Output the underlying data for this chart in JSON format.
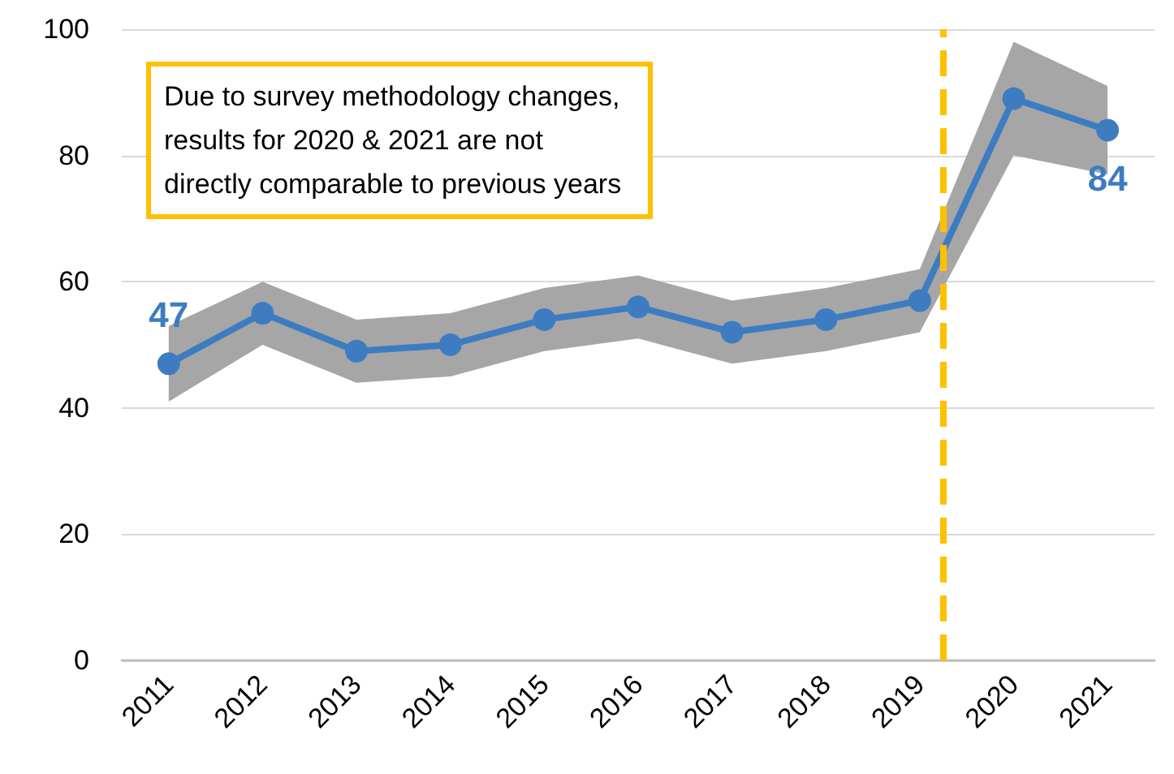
{
  "chart_data": {
    "type": "line",
    "x": [
      2011,
      2012,
      2013,
      2014,
      2015,
      2016,
      2017,
      2018,
      2019,
      2020,
      2021
    ],
    "xlim": [
      2010.5,
      2021.5
    ],
    "xticks": [
      2011,
      2012,
      2013,
      2014,
      2015,
      2016,
      2017,
      2018,
      2019,
      2020,
      2021
    ],
    "ylim": [
      0,
      100
    ],
    "yticks": [
      0,
      20,
      40,
      60,
      80,
      100
    ],
    "series": [
      {
        "color": "#3d7cc0",
        "values": [
          47,
          55,
          49,
          50,
          54,
          56,
          52,
          54,
          57,
          89,
          84
        ],
        "lower": [
          41,
          50,
          44,
          45,
          49,
          51,
          47,
          49,
          52,
          80,
          77
        ],
        "upper": [
          53,
          60,
          54,
          55,
          59,
          61,
          57,
          59,
          62,
          98,
          91
        ],
        "value_labels": [
          "47",
          null,
          null,
          null,
          null,
          null,
          null,
          null,
          null,
          null,
          "84"
        ]
      }
    ],
    "ref_lines": [
      {
        "axis": "x",
        "value": 2019.25,
        "color": "#ffc000",
        "line_style": "dashed"
      }
    ],
    "annotations": [
      "Due to survey methodology changes, results for 2020 & 2021 are not directly comparable to previous years"
    ],
    "grid": "y",
    "marker": "circle",
    "line_style": "solid"
  }
}
